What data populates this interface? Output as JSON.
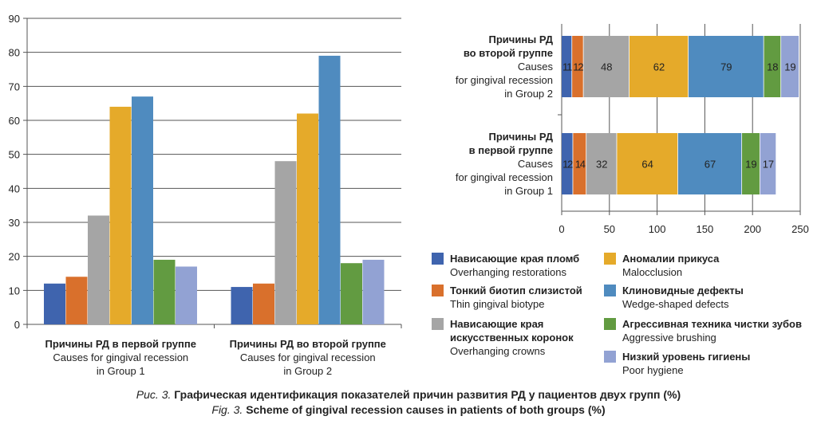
{
  "chart_data": [
    {
      "type": "bar",
      "categories": [
        {
          "ru": "Причины РД в первой группе",
          "en": "Causes for gingival recession in Group 1",
          "en_lines": [
            "Causes for gingival recession",
            "in Group 1"
          ]
        },
        {
          "ru": "Причины РД во второй группе",
          "en": "Causes for gingival recession in Group 2",
          "en_lines": [
            "Causes for gingival recession",
            "in Group 2"
          ]
        }
      ],
      "series": [
        {
          "name": "Нависающие края пломб / Overhanging restorations",
          "values": [
            12,
            11
          ]
        },
        {
          "name": "Тонкий биотип слизистой / Thin gingival biotype",
          "values": [
            14,
            12
          ]
        },
        {
          "name": "Нависающие края искусственных коронок / Overhanging crowns",
          "values": [
            32,
            48
          ]
        },
        {
          "name": "Аномалии прикуса / Malocclusion",
          "values": [
            64,
            62
          ]
        },
        {
          "name": "Клиновидные дефекты / Wedge-shaped defects",
          "values": [
            67,
            79
          ]
        },
        {
          "name": "Агрессивная техника чистки зубов / Aggressive brushing",
          "values": [
            19,
            18
          ]
        },
        {
          "name": "Низкий уровень гигиены / Poor hygiene",
          "values": [
            17,
            19
          ]
        }
      ],
      "ylim": [
        0,
        90
      ],
      "yticks": [
        "0",
        "10",
        "20",
        "30",
        "40",
        "50",
        "60",
        "70",
        "80",
        "90"
      ],
      "grid": "horizontal"
    },
    {
      "type": "bar",
      "orientation": "horizontal",
      "stacked": true,
      "categories": [
        {
          "ru_lines": [
            "Причины РД",
            "во второй группе"
          ],
          "en_lines": [
            "Causes",
            "for gingival recession",
            "in Group 2"
          ]
        },
        {
          "ru_lines": [
            "Причины РД",
            "в первой группе"
          ],
          "en_lines": [
            "Causes",
            "for gingival recession",
            "in Group 1"
          ]
        }
      ],
      "series_values": [
        [
          11,
          12,
          48,
          62,
          79,
          18,
          19
        ],
        [
          12,
          14,
          32,
          64,
          67,
          19,
          17
        ]
      ],
      "xlim": [
        0,
        250
      ],
      "xticks": [
        "0",
        "50",
        "100",
        "150",
        "200",
        "250"
      ],
      "grid": "vertical",
      "data_labels": true
    }
  ],
  "legend": [
    {
      "ru": [
        "Нависающие края пломб"
      ],
      "en": "Overhanging restorations",
      "color": "#3f64ae"
    },
    {
      "ru": [
        "Тонкий биотип слизистой"
      ],
      "en": "Thin gingival biotype",
      "color": "#d9702c"
    },
    {
      "ru": [
        "Нависающие края",
        "искусственных коронок"
      ],
      "en": "Overhanging crowns",
      "color": "#a5a5a5"
    },
    {
      "ru": [
        "Аномалии прикуса"
      ],
      "en": "Malocclusion",
      "color": "#e5aa2a"
    },
    {
      "ru": [
        "Клиновидные дефекты"
      ],
      "en": "Wedge-shaped defects",
      "color": "#4f8bbf"
    },
    {
      "ru": [
        "Агрессивная техника чистки зубов"
      ],
      "en": "Aggressive brushing",
      "color": "#629b41"
    },
    {
      "ru": [
        "Низкий уровень гигиены"
      ],
      "en": "Poor hygiene",
      "color": "#92a2d3"
    }
  ],
  "caption": {
    "ru_prefix": "Рис. 3.",
    "ru_text": "Графическая идентификация показателей причин развития РД у пациентов двух групп (%)",
    "en_prefix": "Fig. 3.",
    "en_text": "Scheme of gingival recession causes in patients of both groups (%)"
  }
}
